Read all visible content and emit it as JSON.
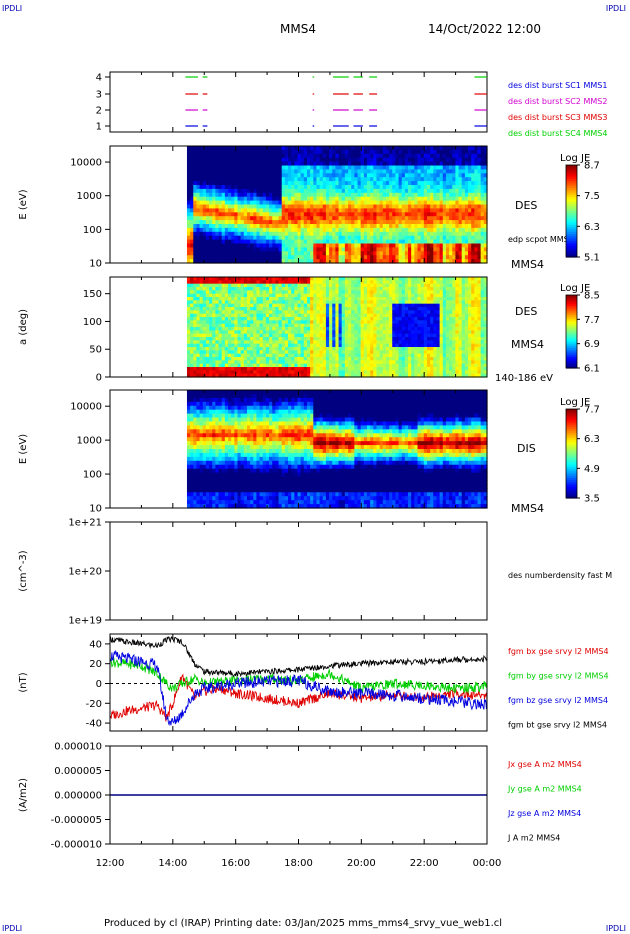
{
  "corners": {
    "tl": "IPDLI",
    "tr": "IPDLI",
    "bl": "IPDLI",
    "br": "IPDLI"
  },
  "header": {
    "spacecraft": "MMS4",
    "datetime": "14/Oct/2022 12:00"
  },
  "footer": "Produced by cl (IRAP)   Printing date: 03/Jan/2025   mms_mms4_srvy_vue_web1.cl",
  "colors": {
    "red": "#e00000",
    "green": "#00d000",
    "blue": "#0000e0",
    "magenta": "#d000d0",
    "black": "#000000"
  },
  "chart_data": [
    {
      "type": "timeline",
      "time_axis": {
        "ticks": [
          "12:00",
          "14:00",
          "16:00",
          "18:00",
          "20:00",
          "22:00",
          "00:00"
        ],
        "range_hours": [
          12,
          24
        ]
      },
      "yticks": [
        "1",
        "2",
        "3",
        "4"
      ],
      "legend": [
        {
          "label": "des dist burst SC1 MMS1",
          "color": "#0000e0"
        },
        {
          "label": "des dist burst SC2 MMS2",
          "color": "#d000d0"
        },
        {
          "label": "des dist burst SC3 MMS3",
          "color": "#e00000"
        },
        {
          "label": "des dist burst SC4 MMS4",
          "color": "#00d000"
        }
      ],
      "intervals_hours": [
        [
          14.4,
          14.8
        ],
        [
          14.95,
          15.1
        ],
        [
          18.45,
          18.5
        ],
        [
          19.1,
          19.6
        ],
        [
          19.75,
          20.05
        ],
        [
          20.25,
          20.5
        ],
        [
          23.6,
          24.0
        ]
      ]
    },
    {
      "type": "heatmap",
      "ylabel": "E (eV)",
      "yticks": [
        "10",
        "100",
        "1000",
        "10000"
      ],
      "ylim_log": [
        10,
        30000
      ],
      "labels": [
        "DES",
        "edp scpot MMS4",
        "MMS4"
      ],
      "colorbar": {
        "title": "Log JE",
        "ticks": [
          "8.7",
          "7.5",
          "6.3",
          "5.1"
        ]
      },
      "data_start_hour": 14.45
    },
    {
      "type": "heatmap",
      "ylabel": "a (deg)",
      "yticks": [
        "0",
        "50",
        "100",
        "150"
      ],
      "ylim": [
        0,
        180
      ],
      "labels": [
        "DES",
        "MMS4",
        "140-186 eV"
      ],
      "colorbar": {
        "title": "Log JE",
        "ticks": [
          "8.5",
          "7.7",
          "6.9",
          "6.1"
        ]
      },
      "data_start_hour": 14.45
    },
    {
      "type": "heatmap",
      "ylabel": "E (eV)",
      "yticks": [
        "10",
        "100",
        "1000",
        "10000"
      ],
      "ylim_log": [
        10,
        30000
      ],
      "labels": [
        "DIS",
        "MMS4"
      ],
      "colorbar": {
        "title": "Log JE",
        "ticks": [
          "7.7",
          "6.3",
          "4.9",
          "3.5"
        ]
      },
      "data_start_hour": 14.45
    },
    {
      "type": "line",
      "ylabel": "(cm^-3)",
      "yticks": [
        "1e+19",
        "1e+20",
        "1e+21"
      ],
      "legend": [
        {
          "label": "des numberdensity fast M",
          "color": "#000000"
        }
      ]
    },
    {
      "type": "line",
      "ylabel": "(nT)",
      "yticks": [
        "-40",
        "-20",
        "0",
        "20",
        "40"
      ],
      "ylim": [
        -48,
        50
      ],
      "legend": [
        {
          "label": "fgm bx gse srvy l2 MMS4",
          "color": "#e00000"
        },
        {
          "label": "fgm by gse srvy l2 MMS4",
          "color": "#00d000"
        },
        {
          "label": "fgm bz gse srvy l2 MMS4",
          "color": "#0000e0"
        },
        {
          "label": "fgm bt gse srvy l2 MMS4",
          "color": "#000000"
        }
      ],
      "series": [
        {
          "name": "fgm bx gse srvy l2 MMS4",
          "x": [
            12,
            12.5,
            13,
            13.5,
            13.8,
            14,
            14.3,
            14.7,
            15,
            15.5,
            16,
            17,
            18,
            19,
            20,
            21,
            22,
            23,
            24
          ],
          "values": [
            -33,
            -28,
            -25,
            -22,
            -35,
            -20,
            8,
            -15,
            -8,
            -5,
            -10,
            -15,
            -20,
            -10,
            -15,
            -12,
            -14,
            -10,
            -12
          ]
        },
        {
          "name": "fgm by gse srvy l2 MMS4",
          "x": [
            12,
            12.5,
            13,
            13.5,
            13.8,
            14,
            14.3,
            14.7,
            15,
            16,
            17,
            18,
            19,
            20,
            21,
            22,
            23,
            24
          ],
          "values": [
            22,
            20,
            18,
            10,
            0,
            -5,
            0,
            5,
            0,
            3,
            5,
            3,
            10,
            -5,
            0,
            -2,
            -5,
            -3
          ]
        },
        {
          "name": "fgm bz gse srvy l2 MMS4",
          "x": [
            12,
            12.5,
            13,
            13.5,
            13.8,
            14,
            14.3,
            14.7,
            15,
            16,
            17,
            18,
            19,
            20,
            21,
            22,
            23,
            24
          ],
          "values": [
            28,
            25,
            22,
            18,
            -35,
            -40,
            -30,
            -10,
            -5,
            0,
            2,
            3,
            -8,
            -10,
            -12,
            -15,
            -18,
            -22
          ]
        },
        {
          "name": "fgm bt gse srvy l2 MMS4",
          "x": [
            12,
            12.5,
            13,
            13.5,
            13.8,
            14,
            14.3,
            14.7,
            15,
            16,
            17,
            18,
            19,
            20,
            21,
            22,
            23,
            24
          ],
          "values": [
            45,
            42,
            40,
            38,
            44,
            45,
            42,
            20,
            12,
            10,
            12,
            14,
            18,
            20,
            22,
            22,
            24,
            25
          ]
        }
      ]
    },
    {
      "type": "line",
      "ylabel": "(A/m2)",
      "yticks": [
        "-0.000010",
        "-0.000005",
        "0.000000",
        "0.000005",
        "0.000010"
      ],
      "ylim": [
        -1e-05,
        1e-05
      ],
      "legend": [
        {
          "label": "Jx gse A m2 MMS4",
          "color": "#e00000"
        },
        {
          "label": "Jy gse A m2 MMS4",
          "color": "#00d000"
        },
        {
          "label": "Jz gse A m2 MMS4",
          "color": "#0000e0"
        },
        {
          "label": "J A m2 MMS4",
          "color": "#000000"
        }
      ],
      "series": [
        {
          "name": "J A m2 MMS4",
          "x": [
            12,
            24
          ],
          "values": [
            0,
            0
          ]
        }
      ]
    }
  ]
}
